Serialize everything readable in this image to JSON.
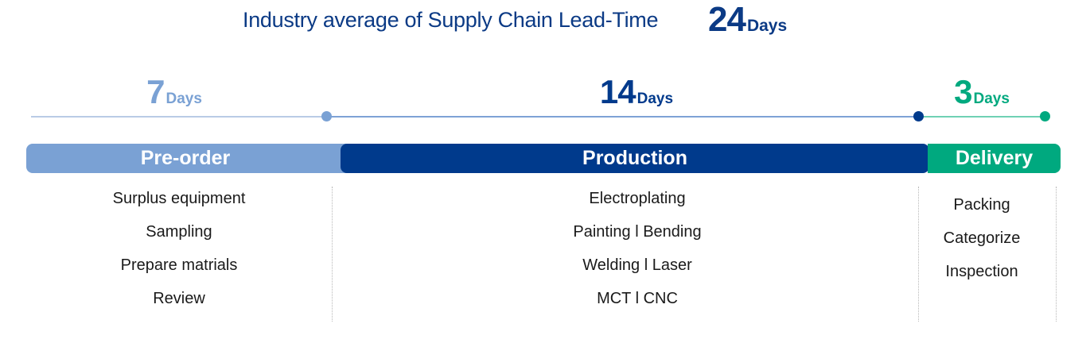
{
  "header": {
    "title": "Industry average of Supply Chain Lead-Time",
    "total_value": "24",
    "total_unit": "Days"
  },
  "phases": [
    {
      "name": "Pre-order",
      "duration_value": "7",
      "duration_unit": "Days",
      "color": "#7aa1d4",
      "tasks": [
        "Surplus equipment",
        "Sampling",
        "Prepare matrials",
        "Review"
      ]
    },
    {
      "name": "Production",
      "duration_value": "14",
      "duration_unit": "Days",
      "color": "#003a8c",
      "tasks": [
        "Electroplating",
        "Painting l Bending",
        "Welding l Laser",
        "MCT l CNC"
      ]
    },
    {
      "name": "Delivery",
      "duration_value": "3",
      "duration_unit": "Days",
      "color": "#00a97f",
      "tasks": [
        "Packing",
        "Categorize",
        "Inspection"
      ]
    }
  ],
  "colors": {
    "title": "#0b3a85",
    "preorder_line": "#b9cbe6",
    "production_line": "#7ea2d6",
    "delivery_line": "#6fd1b4",
    "task_text": "#1a1a1a"
  }
}
